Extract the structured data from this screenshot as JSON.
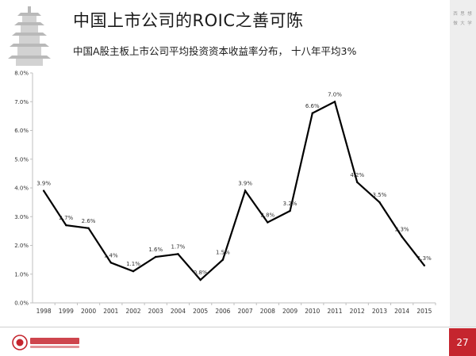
{
  "header": {
    "title": "中国上市公司的ROIC之善可陈",
    "subtitle": "中国A股主板上市公司平均投资资本收益率分布， 十八年平均3%"
  },
  "side_strip": {
    "lines": [
      "西  思  想",
      "做  大  学"
    ]
  },
  "footer": {
    "page_number": "27"
  },
  "colors": {
    "accent": "#c5252e",
    "line": "#000000",
    "axis": "#bfbfbf"
  },
  "chart_data": {
    "type": "line",
    "categories": [
      "1998",
      "1999",
      "2000",
      "2001",
      "2002",
      "2003",
      "2004",
      "2005",
      "2006",
      "2007",
      "2008",
      "2009",
      "2010",
      "2011",
      "2012",
      "2013",
      "2014",
      "2015"
    ],
    "series": [
      {
        "values": [
          3.9,
          2.7,
          2.6,
          1.4,
          1.1,
          1.6,
          1.7,
          0.8,
          1.5,
          3.9,
          2.8,
          3.2,
          6.6,
          7.0,
          4.2,
          3.5,
          2.3,
          1.3
        ],
        "labels": [
          "3.9%",
          "2.7%",
          "2.6%",
          "1.4%",
          "1.1%",
          "1.6%",
          "1.7%",
          "0.8%",
          "1.5%",
          "3.9%",
          "2.8%",
          "3.2%",
          "6.6%",
          "7.0%",
          "4.2%",
          "3.5%",
          "2.3%",
          "1.3%"
        ]
      }
    ],
    "y_ticks": [
      "0.0%",
      "1.0%",
      "2.0%",
      "3.0%",
      "4.0%",
      "5.0%",
      "6.0%",
      "7.0%",
      "8.0%"
    ],
    "ylim": [
      0,
      8
    ],
    "grid": false,
    "legend": "none"
  }
}
